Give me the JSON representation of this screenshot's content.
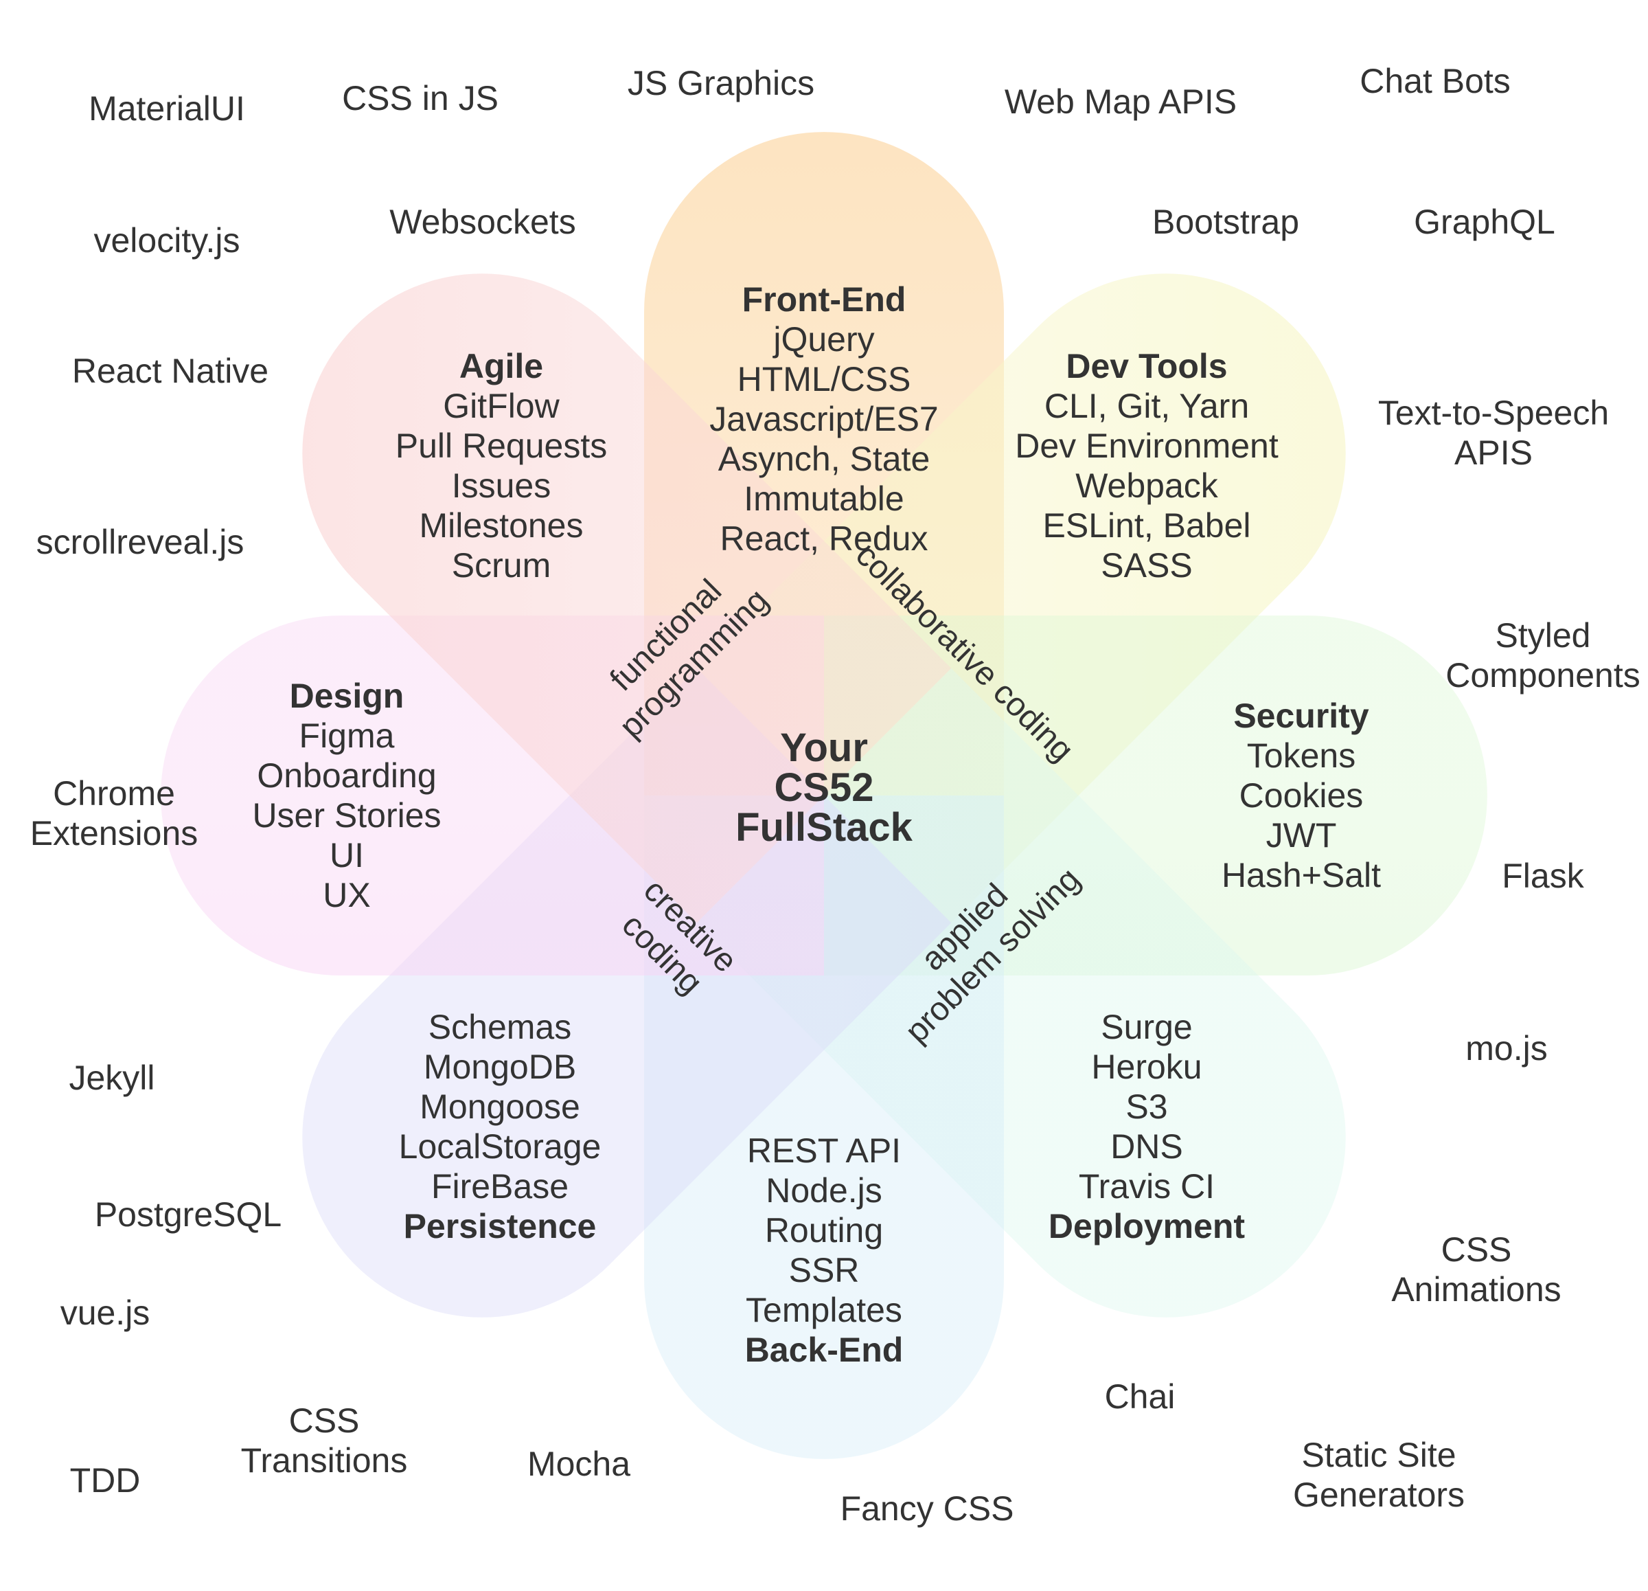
{
  "center": {
    "lines": [
      "Your",
      "CS52",
      "FullStack"
    ]
  },
  "petals": [
    {
      "key": "front-end",
      "title": "Front-End",
      "title_position": "top",
      "items": [
        "jQuery",
        "HTML/CSS",
        "Javascript/ES7",
        "Asynch, State",
        "Immutable",
        "React, Redux"
      ],
      "color": "#fcd9a8"
    },
    {
      "key": "dev-tools",
      "title": "Dev Tools",
      "title_position": "top",
      "items": [
        "CLI, Git, Yarn",
        "Dev Environment",
        "Webpack",
        "ESLint, Babel",
        "SASS"
      ],
      "color": "#f7f6c8"
    },
    {
      "key": "security",
      "title": "Security",
      "title_position": "top",
      "items": [
        "Tokens",
        "Cookies",
        "JWT",
        "Hash+Salt"
      ],
      "color": "#dcf7d4"
    },
    {
      "key": "deployment",
      "title": "Deployment",
      "title_position": "bottom",
      "items": [
        "Surge",
        "Heroku",
        "S3",
        "DNS",
        "Travis CI"
      ],
      "color": "#dcf7ee"
    },
    {
      "key": "back-end",
      "title": "Back-End",
      "title_position": "bottom",
      "items": [
        "REST API",
        "Node.js",
        "Routing",
        "SSR",
        "Templates"
      ],
      "color": "#d4ecf8"
    },
    {
      "key": "persistence",
      "title": "Persistence",
      "title_position": "bottom",
      "items": [
        "Schemas",
        "MongoDB",
        "Mongoose",
        "LocalStorage",
        "FireBase"
      ],
      "color": "#d8d8f8"
    },
    {
      "key": "design",
      "title": "Design",
      "title_position": "top",
      "items": [
        "Figma",
        "Onboarding",
        "User Stories",
        "UI",
        "UX"
      ],
      "color": "#f8d4f4"
    },
    {
      "key": "agile",
      "title": "Agile",
      "title_position": "top",
      "items": [
        "GitFlow",
        "Pull Requests",
        "Issues",
        "Milestones",
        "Scrum"
      ],
      "color": "#fad6d6"
    }
  ],
  "themes": [
    {
      "key": "functional-programming",
      "lines": [
        "functional",
        "programming"
      ]
    },
    {
      "key": "collaborative-coding",
      "lines": [
        "collaborative coding"
      ]
    },
    {
      "key": "creative-coding",
      "lines": [
        "creative",
        "coding"
      ]
    },
    {
      "key": "applied-problem-solving",
      "lines": [
        "applied",
        "problem solving"
      ]
    }
  ],
  "outer_topics": [
    {
      "key": "materialui",
      "lines": [
        "MaterialUI"
      ]
    },
    {
      "key": "css-in-js",
      "lines": [
        "CSS in JS"
      ]
    },
    {
      "key": "js-graphics",
      "lines": [
        "JS Graphics"
      ]
    },
    {
      "key": "web-map-apis",
      "lines": [
        "Web Map APIS"
      ]
    },
    {
      "key": "chat-bots",
      "lines": [
        "Chat Bots"
      ]
    },
    {
      "key": "velocity-js",
      "lines": [
        "velocity.js"
      ]
    },
    {
      "key": "websockets",
      "lines": [
        "Websockets"
      ]
    },
    {
      "key": "bootstrap",
      "lines": [
        "Bootstrap"
      ]
    },
    {
      "key": "graphql",
      "lines": [
        "GraphQL"
      ]
    },
    {
      "key": "react-native",
      "lines": [
        "React Native"
      ]
    },
    {
      "key": "text-to-speech-apis",
      "lines": [
        "Text-to-Speech",
        "APIS"
      ]
    },
    {
      "key": "scrollreveal-js",
      "lines": [
        "scrollreveal.js"
      ]
    },
    {
      "key": "styled-components",
      "lines": [
        "Styled",
        "Components"
      ]
    },
    {
      "key": "chrome-extensions",
      "lines": [
        "Chrome",
        "Extensions"
      ]
    },
    {
      "key": "flask",
      "lines": [
        "Flask"
      ]
    },
    {
      "key": "mo-js",
      "lines": [
        "mo.js"
      ]
    },
    {
      "key": "jekyll",
      "lines": [
        "Jekyll"
      ]
    },
    {
      "key": "postgresql",
      "lines": [
        "PostgreSQL"
      ]
    },
    {
      "key": "css-animations",
      "lines": [
        "CSS",
        "Animations"
      ]
    },
    {
      "key": "vue-js",
      "lines": [
        "vue.js"
      ]
    },
    {
      "key": "chai",
      "lines": [
        "Chai"
      ]
    },
    {
      "key": "css-transitions",
      "lines": [
        "CSS",
        "Transitions"
      ]
    },
    {
      "key": "mocha",
      "lines": [
        "Mocha"
      ]
    },
    {
      "key": "static-site-generators",
      "lines": [
        "Static Site",
        "Generators"
      ]
    },
    {
      "key": "tdd",
      "lines": [
        "TDD"
      ]
    },
    {
      "key": "fancy-css",
      "lines": [
        "Fancy CSS"
      ]
    }
  ]
}
